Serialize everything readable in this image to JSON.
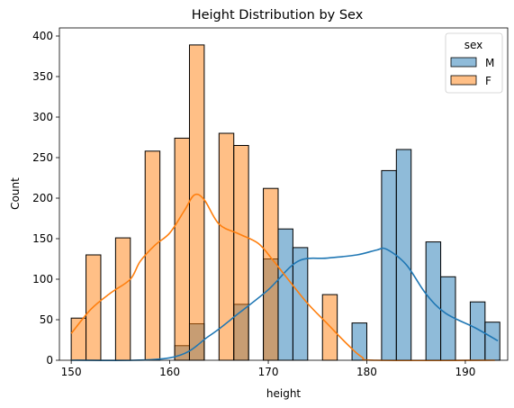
{
  "chart_data": {
    "type": "bar",
    "title": "Height Distribution by Sex",
    "xlabel": "height",
    "ylabel": "Count",
    "xlim": [
      148.8,
      194.3
    ],
    "ylim": [
      0,
      410
    ],
    "xticks": [
      150,
      160,
      170,
      180,
      190
    ],
    "yticks": [
      0,
      50,
      100,
      150,
      200,
      250,
      300,
      350,
      400
    ],
    "bin_edges": [
      150.0,
      151.5,
      153.0,
      154.5,
      156.0,
      157.5,
      159.0,
      160.5,
      162.0,
      163.5,
      165.0,
      166.5,
      168.0,
      169.5,
      171.0,
      172.5,
      174.0,
      175.5,
      177.0,
      178.5,
      180.0,
      181.5,
      183.0,
      184.5,
      186.0,
      187.5,
      189.0,
      190.5,
      192.0,
      193.5
    ],
    "legend": {
      "title": "sex",
      "position": "top-right"
    },
    "series": [
      {
        "name": "M",
        "color": "#1f77b4",
        "values": [
          0,
          0,
          0,
          0,
          0,
          0,
          0,
          18,
          45,
          0,
          0,
          69,
          0,
          125,
          162,
          139,
          0,
          0,
          0,
          46,
          0,
          234,
          260,
          0,
          146,
          103,
          0,
          72,
          47
        ],
        "kde": [
          [
            150,
            0
          ],
          [
            160,
            3
          ],
          [
            164,
            30
          ],
          [
            167,
            58
          ],
          [
            170,
            87
          ],
          [
            173,
            122
          ],
          [
            176,
            126
          ],
          [
            179,
            130
          ],
          [
            181,
            136
          ],
          [
            182,
            137
          ],
          [
            184,
            118
          ],
          [
            186,
            82
          ],
          [
            188,
            58
          ],
          [
            191,
            40
          ],
          [
            193.3,
            24
          ]
        ]
      },
      {
        "name": "F",
        "color": "#ff7f0e",
        "values": [
          52,
          130,
          0,
          151,
          0,
          258,
          0,
          274,
          389,
          0,
          280,
          265,
          0,
          212,
          0,
          0,
          0,
          81,
          0,
          0,
          0,
          0,
          0,
          0,
          0,
          0,
          0,
          0,
          0
        ],
        "kde": [
          [
            150,
            33
          ],
          [
            152,
            63
          ],
          [
            154,
            83
          ],
          [
            156,
            100
          ],
          [
            157,
            122
          ],
          [
            158.5,
            142
          ],
          [
            160,
            157
          ],
          [
            161.5,
            185
          ],
          [
            162.5,
            204
          ],
          [
            163.5,
            198
          ],
          [
            165,
            168
          ],
          [
            167,
            156
          ],
          [
            169,
            144
          ],
          [
            170.5,
            123
          ],
          [
            172,
            100
          ],
          [
            174,
            70
          ],
          [
            176,
            45
          ],
          [
            178,
            20
          ],
          [
            179.5,
            4
          ],
          [
            181,
            0
          ],
          [
            193,
            0
          ]
        ]
      }
    ]
  }
}
